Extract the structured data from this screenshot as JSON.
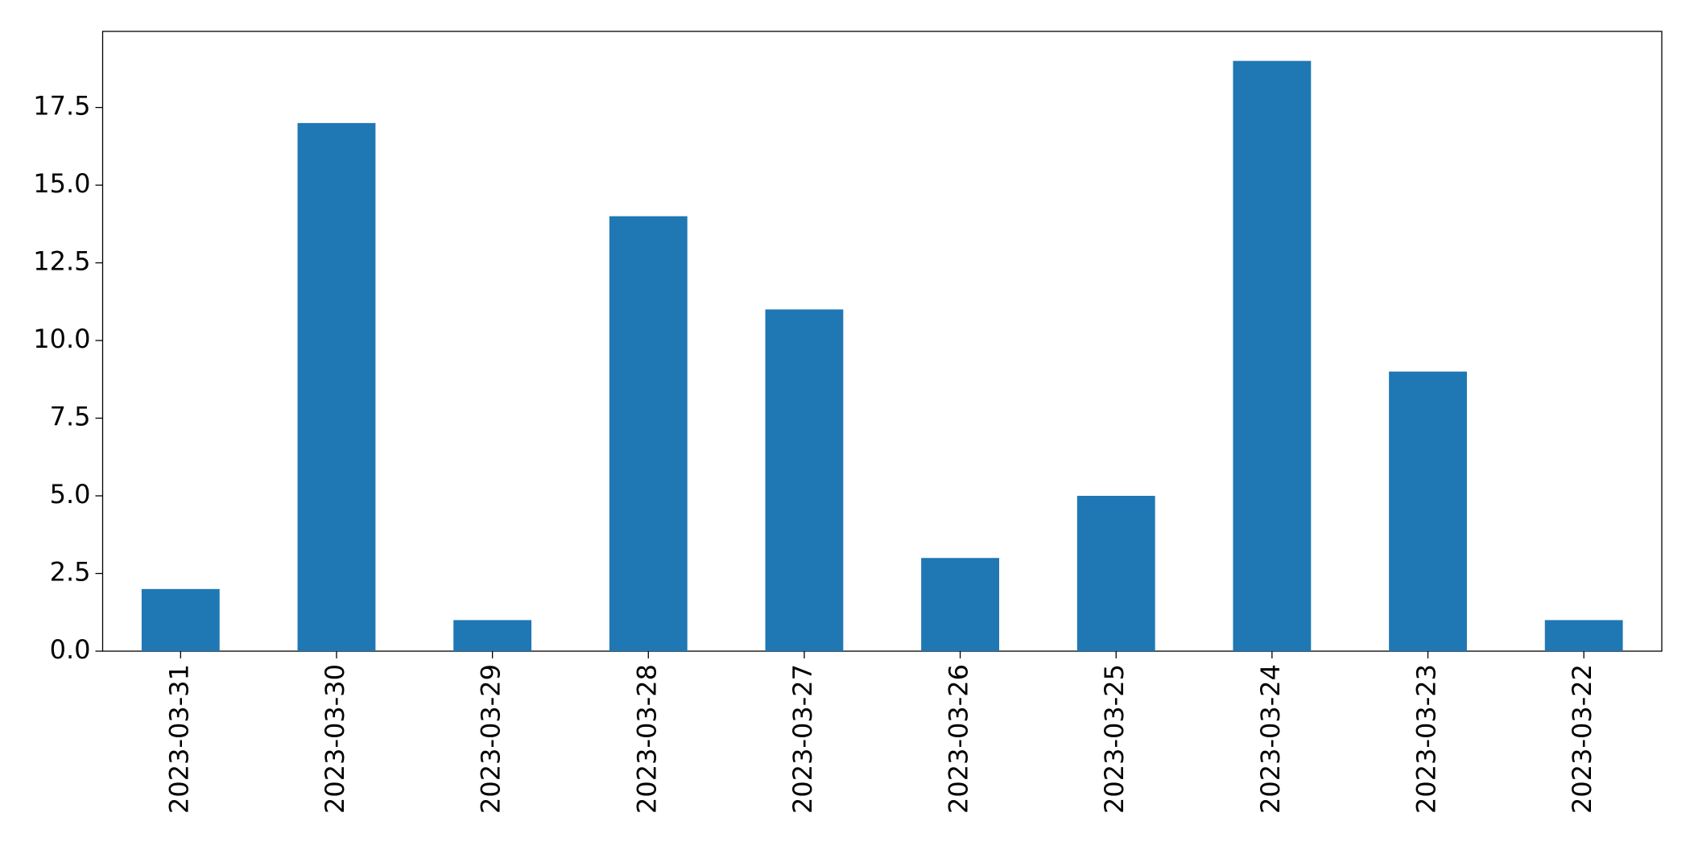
{
  "chart_data": {
    "type": "bar",
    "categories": [
      "2023-03-31",
      "2023-03-30",
      "2023-03-29",
      "2023-03-28",
      "2023-03-27",
      "2023-03-26",
      "2023-03-25",
      "2023-03-24",
      "2023-03-23",
      "2023-03-22"
    ],
    "values": [
      2,
      17,
      1,
      14,
      11,
      3,
      5,
      19,
      9,
      1
    ],
    "color": "#1f77b4",
    "ylim": [
      0,
      19.95
    ],
    "yticks": [
      {
        "value": 0,
        "label": "0.0"
      },
      2.5,
      {
        "value": 5,
        "label": "5.0"
      },
      7.5,
      {
        "value": 10,
        "label": "10.0"
      },
      12.5,
      {
        "value": 15,
        "label": "15.0"
      },
      17.5
    ],
    "grid": false
  }
}
